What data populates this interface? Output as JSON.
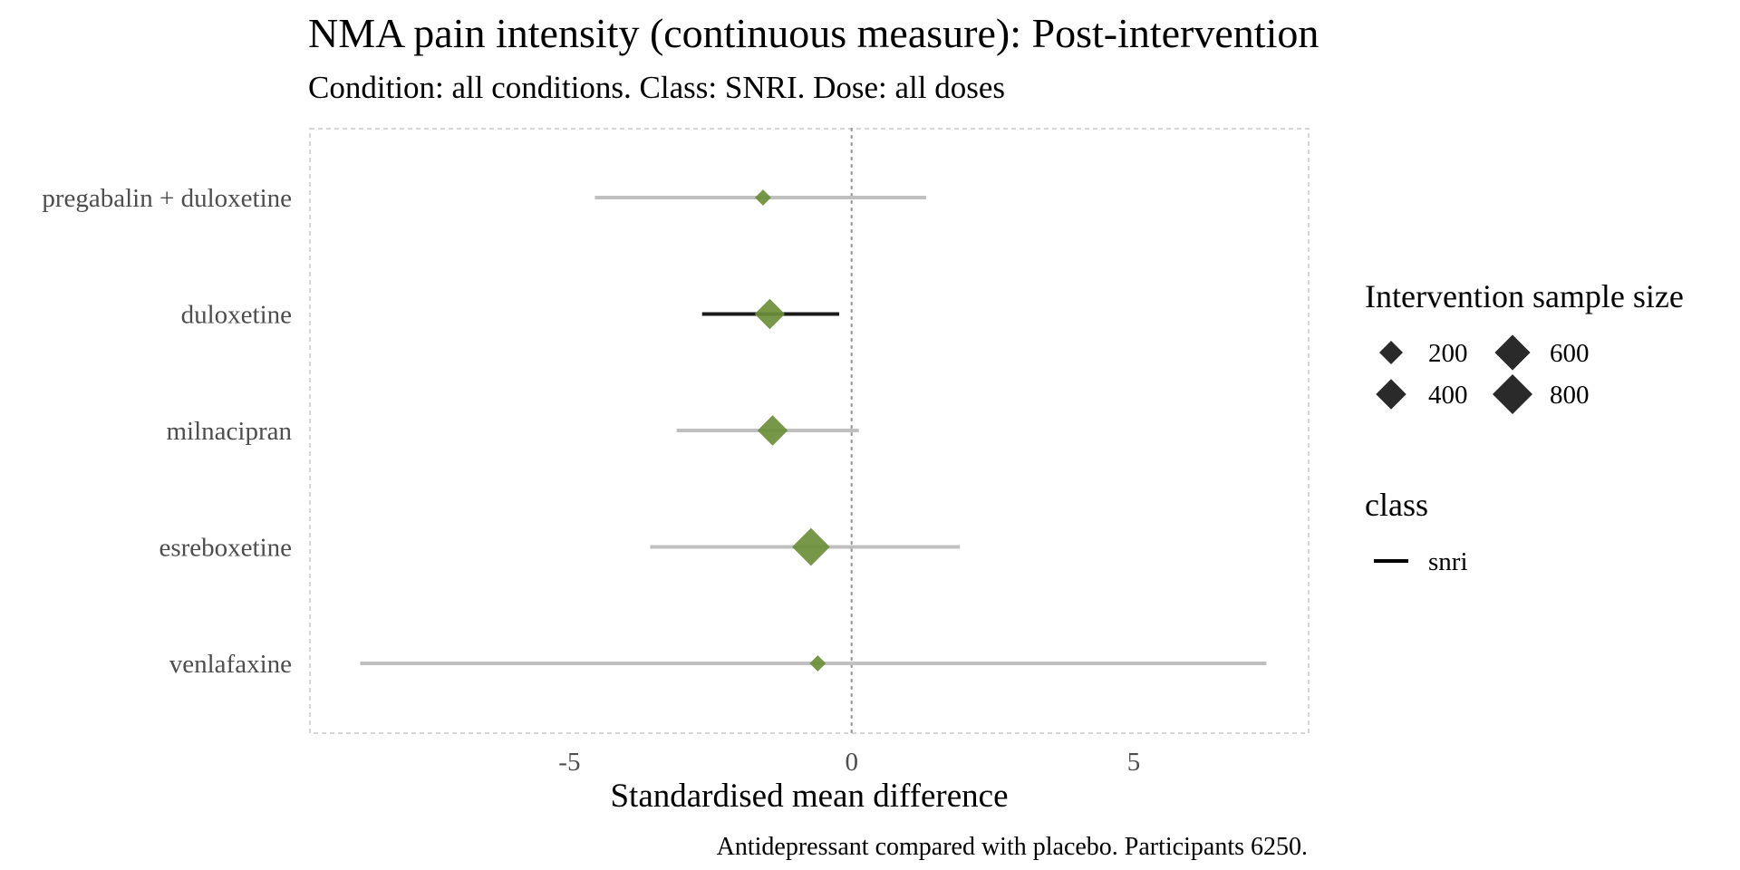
{
  "chart_data": {
    "type": "forest",
    "title": "NMA pain intensity (continuous measure): Post-intervention",
    "subtitle": "Condition: all conditions. Class: SNRI. Dose: all doses",
    "xlabel": "Standardised mean difference",
    "caption": "Antidepressant compared with placebo. Participants 6250.",
    "xlim": [
      -9.6,
      8.1
    ],
    "x_ticks": [
      -5,
      0,
      5
    ],
    "x_tick_labels": [
      "-5",
      "0",
      "5"
    ],
    "reference_line": 0,
    "marker_color": "#6b8e3a",
    "significant_ci_color": "#1a1a1a",
    "nonsignificant_ci_color": "#c0c0c0",
    "rows": [
      {
        "label": "pregabalin + duloxetine",
        "estimate": -1.57,
        "ci_lower": -4.55,
        "ci_upper": 1.32,
        "sample_size": 60,
        "significant": false
      },
      {
        "label": "duloxetine",
        "estimate": -1.45,
        "ci_lower": -2.65,
        "ci_upper": -0.22,
        "sample_size": 400,
        "significant": true
      },
      {
        "label": "milnacipran",
        "estimate": -1.4,
        "ci_lower": -3.1,
        "ci_upper": 0.13,
        "sample_size": 400,
        "significant": false
      },
      {
        "label": "esreboxetine",
        "estimate": -0.72,
        "ci_lower": -3.57,
        "ci_upper": 1.92,
        "sample_size": 700,
        "significant": false
      },
      {
        "label": "venlafaxine",
        "estimate": -0.6,
        "ci_lower": -8.71,
        "ci_upper": 7.35,
        "sample_size": 60,
        "significant": false
      }
    ],
    "legend_size": {
      "title": "Intervention sample size",
      "items": [
        {
          "label": "200",
          "size": 200
        },
        {
          "label": "400",
          "size": 400
        },
        {
          "label": "600",
          "size": 600
        },
        {
          "label": "800",
          "size": 800
        }
      ]
    },
    "legend_class": {
      "title": "class",
      "items": [
        {
          "label": "snri"
        }
      ]
    }
  }
}
